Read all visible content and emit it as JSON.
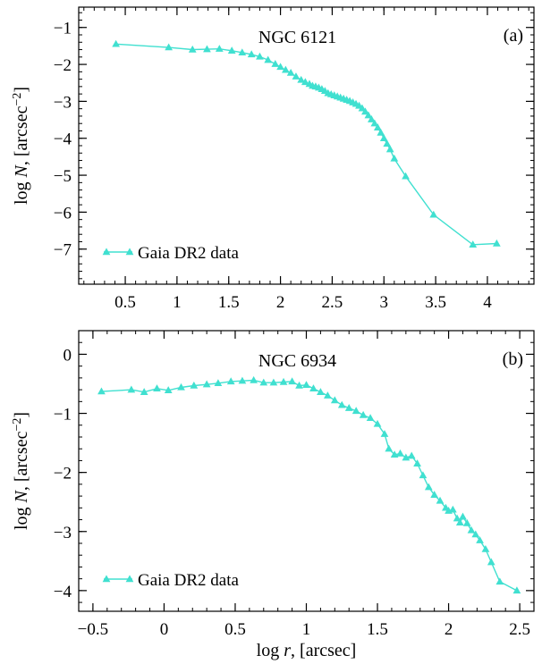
{
  "chart_data": [
    {
      "type": "line",
      "panel_label": "(a)",
      "title": "NGC 6121",
      "xlabel": "",
      "ylabel_parts": [
        "log ",
        "N",
        ", [arcsec",
        "−2",
        "]"
      ],
      "xlim": [
        0.05,
        4.45
      ],
      "ylim": [
        -7.95,
        -0.45
      ],
      "xticks": [
        0.5,
        1,
        1.5,
        2,
        2.5,
        3,
        3.5,
        4
      ],
      "xtick_labels": [
        "0.5",
        "1",
        "1.5",
        "2",
        "2.5",
        "3",
        "3.5",
        "4"
      ],
      "yticks": [
        -1,
        -2,
        -3,
        -4,
        -5,
        -6,
        -7
      ],
      "ytick_labels": [
        "−1",
        "−2",
        "−3",
        "−4",
        "−5",
        "−6",
        "−7"
      ],
      "legend": "bottom-left",
      "grid": false,
      "color": "#40e0d0",
      "series": [
        {
          "name": "Gaia DR2 data",
          "x": [
            0.41,
            0.92,
            1.15,
            1.29,
            1.41,
            1.53,
            1.63,
            1.72,
            1.8,
            1.88,
            1.95,
            2.0,
            2.05,
            2.1,
            2.15,
            2.2,
            2.24,
            2.28,
            2.31,
            2.34,
            2.37,
            2.4,
            2.43,
            2.46,
            2.49,
            2.52,
            2.55,
            2.58,
            2.61,
            2.64,
            2.67,
            2.7,
            2.73,
            2.76,
            2.79,
            2.82,
            2.85,
            2.88,
            2.91,
            2.94,
            2.97,
            3.0,
            3.03,
            3.06,
            3.1,
            3.21,
            3.48,
            3.86,
            4.09
          ],
          "y": [
            -1.45,
            -1.54,
            -1.6,
            -1.59,
            -1.58,
            -1.63,
            -1.68,
            -1.73,
            -1.79,
            -1.88,
            -1.99,
            -2.07,
            -2.15,
            -2.23,
            -2.33,
            -2.42,
            -2.48,
            -2.53,
            -2.58,
            -2.6,
            -2.63,
            -2.67,
            -2.72,
            -2.78,
            -2.81,
            -2.84,
            -2.87,
            -2.9,
            -2.93,
            -2.96,
            -2.99,
            -3.03,
            -3.07,
            -3.12,
            -3.19,
            -3.28,
            -3.38,
            -3.49,
            -3.6,
            -3.71,
            -3.85,
            -4.0,
            -4.15,
            -4.3,
            -4.55,
            -5.03,
            -6.07,
            -6.88,
            -6.85
          ]
        }
      ]
    },
    {
      "type": "line",
      "panel_label": "(b)",
      "title": "NGC 6934",
      "xlabel_parts": [
        "log ",
        "r",
        ", [arcsec]"
      ],
      "ylabel_parts": [
        "log ",
        "N",
        ", [arcsec",
        "−2",
        "]"
      ],
      "xlim": [
        -0.6,
        2.6
      ],
      "ylim": [
        -4.35,
        0.4
      ],
      "xticks": [
        -0.5,
        0,
        0.5,
        1,
        1.5,
        2,
        2.5
      ],
      "xtick_labels": [
        "−0.5",
        "0",
        "0.5",
        "1",
        "1.5",
        "2",
        "2.5"
      ],
      "yticks": [
        0,
        -1,
        -2,
        -3,
        -4
      ],
      "ytick_labels": [
        "0",
        "−1",
        "−2",
        "−3",
        "−4"
      ],
      "legend": "bottom-left",
      "grid": false,
      "color": "#40e0d0",
      "series": [
        {
          "name": "Gaia DR2 data",
          "x": [
            -0.44,
            -0.23,
            -0.14,
            -0.05,
            0.03,
            0.12,
            0.21,
            0.3,
            0.38,
            0.47,
            0.55,
            0.63,
            0.7,
            0.77,
            0.84,
            0.9,
            0.95,
            1.0,
            1.05,
            1.1,
            1.15,
            1.2,
            1.25,
            1.3,
            1.35,
            1.4,
            1.45,
            1.5,
            1.55,
            1.58,
            1.62,
            1.66,
            1.7,
            1.74,
            1.78,
            1.82,
            1.86,
            1.9,
            1.94,
            1.98,
            2.0,
            2.03,
            2.06,
            2.08,
            2.1,
            2.13,
            2.16,
            2.19,
            2.22,
            2.26,
            2.3,
            2.36,
            2.48
          ],
          "y": [
            -0.63,
            -0.6,
            -0.64,
            -0.58,
            -0.61,
            -0.56,
            -0.53,
            -0.51,
            -0.49,
            -0.46,
            -0.45,
            -0.44,
            -0.48,
            -0.48,
            -0.47,
            -0.46,
            -0.53,
            -0.52,
            -0.58,
            -0.64,
            -0.7,
            -0.78,
            -0.86,
            -0.91,
            -0.96,
            -1.03,
            -1.08,
            -1.18,
            -1.35,
            -1.6,
            -1.7,
            -1.68,
            -1.75,
            -1.72,
            -1.85,
            -2.05,
            -2.25,
            -2.38,
            -2.48,
            -2.6,
            -2.65,
            -2.63,
            -2.78,
            -2.85,
            -2.75,
            -2.86,
            -2.98,
            -3.05,
            -3.15,
            -3.3,
            -3.52,
            -3.85,
            -4.0
          ]
        }
      ]
    }
  ]
}
